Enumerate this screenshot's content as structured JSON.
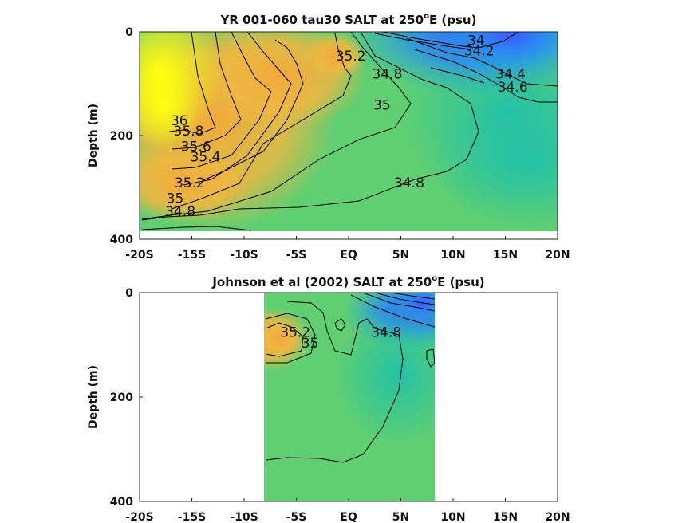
{
  "chart_data": [
    {
      "type": "heatmap",
      "title_main": "YR 001-060 tau30 SALT at 250",
      "title_sup": "o",
      "title_tail": "E (psu)",
      "ylabel": "Depth (m)",
      "xlabel": "",
      "x_ticks": [
        "-20S",
        "-15S",
        "-10S",
        "-5S",
        "EQ",
        "5N",
        "10N",
        "15N",
        "20N"
      ],
      "x_tick_values": [
        -20,
        -15,
        -10,
        -5,
        0,
        5,
        10,
        15,
        20
      ],
      "y_ticks": [
        "0",
        "200",
        "400"
      ],
      "y_tick_values": [
        0,
        200,
        400
      ],
      "xlim": [
        -20,
        20
      ],
      "ylim": [
        0,
        400
      ],
      "data_extent": {
        "x": [
          -20,
          20
        ],
        "depth": [
          0,
          385
        ]
      },
      "colormap": [
        "#3b5bff",
        "#1f9ee8",
        "#27c3a0",
        "#5fd06a",
        "#e9b83a",
        "#ffff10"
      ],
      "contour_labels": [
        {
          "text": "34",
          "x": 12.2,
          "y": 25
        },
        {
          "text": "34.2",
          "x": 12.5,
          "y": 45
        },
        {
          "text": "34.4",
          "x": 15.5,
          "y": 90
        },
        {
          "text": "34.6",
          "x": 15.7,
          "y": 115
        },
        {
          "text": "35.2",
          "x": 0.2,
          "y": 55
        },
        {
          "text": "34.8",
          "x": 3.7,
          "y": 90
        },
        {
          "text": "35",
          "x": 3.2,
          "y": 150
        },
        {
          "text": "36",
          "x": -16.2,
          "y": 180
        },
        {
          "text": "35.8",
          "x": -15.3,
          "y": 200
        },
        {
          "text": "35.6",
          "x": -14.6,
          "y": 230
        },
        {
          "text": "35.4",
          "x": -13.7,
          "y": 250
        },
        {
          "text": "35.2",
          "x": -15.2,
          "y": 300
        },
        {
          "text": "35",
          "x": -16.6,
          "y": 330
        },
        {
          "text": "34.8",
          "x": -16.1,
          "y": 355
        },
        {
          "text": "34.8",
          "x": 5.8,
          "y": 300
        }
      ]
    },
    {
      "type": "heatmap",
      "title_main": "Johnson et al (2002) SALT at 250",
      "title_sup": "o",
      "title_tail": "E (psu)",
      "ylabel": "Depth (m)",
      "xlabel": "",
      "x_ticks": [
        "-20S",
        "-15S",
        "-10S",
        "-5S",
        "EQ",
        "5N",
        "10N",
        "15N",
        "20N"
      ],
      "x_tick_values": [
        -20,
        -15,
        -10,
        -5,
        0,
        5,
        10,
        15,
        20
      ],
      "y_ticks": [
        "0",
        "200",
        "400"
      ],
      "y_tick_values": [
        0,
        200,
        400
      ],
      "xlim": [
        -20,
        20
      ],
      "ylim": [
        0,
        400
      ],
      "data_extent": {
        "x": [
          -8,
          8.2
        ],
        "depth": [
          0,
          400
        ]
      },
      "colormap": [
        "#3b5bff",
        "#1f9ee8",
        "#27c3a0",
        "#5fd06a",
        "#e9b83a",
        "#ffff10"
      ],
      "contour_labels": [
        {
          "text": "35.2",
          "x": -5.1,
          "y": 85
        },
        {
          "text": "35",
          "x": -3.7,
          "y": 105
        },
        {
          "text": "34.8",
          "x": 3.6,
          "y": 85
        }
      ]
    }
  ]
}
